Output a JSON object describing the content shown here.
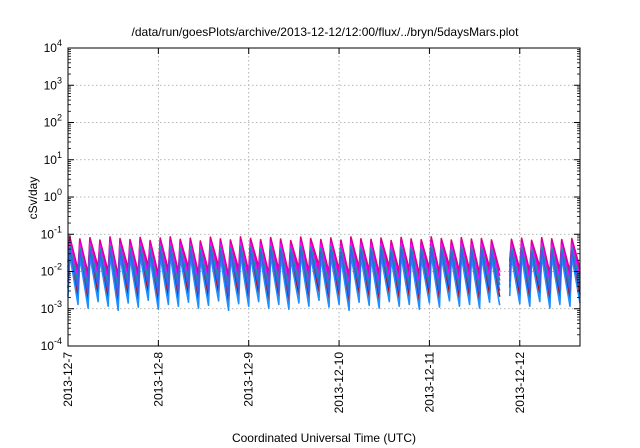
{
  "chart_data": {
    "type": "line",
    "title": "/data/run/goesPlots/archive/2013-12-12/12:00/flux/../bryn/5daysMars.plot",
    "xlabel": "Coordinated Universal Time (UTC)",
    "ylabel": "cSv/day",
    "yscale": "log",
    "ylim": [
      0.0001,
      10000
    ],
    "xlim": [
      "2013-12-07 00:00",
      "2013-12-12 16:00"
    ],
    "grid": true,
    "legend": "none",
    "x_ticks": [
      "2013-12-7",
      "2013-12-8",
      "2013-12-9",
      "2013-12-10",
      "2013-12-11",
      "2013-12-12"
    ],
    "y_ticks": [
      {
        "base": "10",
        "exp": "-4"
      },
      {
        "base": "10",
        "exp": "-3"
      },
      {
        "base": "10",
        "exp": "-2"
      },
      {
        "base": "10",
        "exp": "-1"
      },
      {
        "base": "10",
        "exp": "0"
      },
      {
        "base": "10",
        "exp": "1"
      },
      {
        "base": "10",
        "exp": "2"
      },
      {
        "base": "10",
        "exp": "3"
      },
      {
        "base": "10",
        "exp": "4"
      }
    ],
    "pattern": {
      "cycles": 51,
      "gap_hours": [
        [
          "2013-12-11 17:00",
          "2013-12-11 21:00"
        ]
      ],
      "peaks": [
        0.085,
        0.07,
        0.06,
        0.05,
        0.04,
        0.034,
        0.028
      ],
      "troughs": [
        0.011,
        0.008,
        0.006,
        0.0045,
        0.0032,
        0.0022,
        0.0013
      ],
      "peak_jitter": [
        1.0,
        0.88,
        0.95,
        0.82,
        1.0,
        0.9,
        0.85,
        0.97,
        0.8,
        0.93,
        1.0,
        0.86,
        0.92,
        0.78,
        0.98,
        0.88,
        0.83,
        1.0,
        0.91,
        0.84,
        0.96,
        0.87,
        0.8,
        0.99,
        0.9,
        0.85,
        0.94,
        0.82,
        1.0,
        0.89,
        0.86,
        0.93,
        0.8,
        0.97,
        0.88,
        0.84,
        1.0,
        0.9,
        0.82,
        0.95,
        0.87,
        0.9,
        0.83,
        0.98,
        0.86,
        0.92,
        0.81,
        0.95,
        0.89,
        0.85,
        0.9
      ],
      "trough_jitter": [
        1.0,
        0.8,
        1.2,
        0.9,
        0.7,
        1.1,
        0.85,
        1.3,
        0.75,
        1.0,
        0.9,
        1.15,
        0.8,
        0.95,
        1.25,
        0.7,
        1.05,
        0.9,
        1.2,
        0.8,
        1.0,
        0.75,
        1.1,
        0.9,
        1.3,
        0.85,
        1.0,
        0.7,
        1.15,
        0.95,
        0.8,
        1.2,
        0.9,
        1.0,
        0.75,
        1.1,
        0.85,
        1.25,
        0.9,
        1.0,
        0.8,
        1.15,
        0.95,
        0.7,
        1.05,
        0.9,
        1.2,
        0.8,
        1.0,
        0.9,
        1.1
      ]
    },
    "series": [
      {
        "color": "#e0007a"
      },
      {
        "color": "#cc00cc"
      },
      {
        "color": "#ff00ff"
      },
      {
        "color": "#00a0a0"
      },
      {
        "color": "#3a5ee8"
      },
      {
        "color": "#c00000"
      },
      {
        "color": "#1e8fff"
      }
    ]
  }
}
